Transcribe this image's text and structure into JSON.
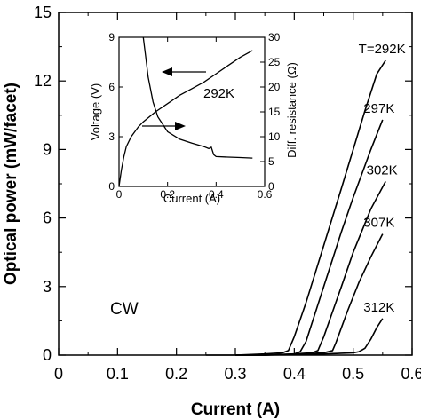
{
  "chart_data": [
    {
      "type": "line",
      "role": "main",
      "xlabel": "Current (A)",
      "ylabel": "Optical power (mW/facet)",
      "xlim": [
        0,
        0.6
      ],
      "ylim": [
        0,
        15
      ],
      "xticks": [
        "0",
        "0.1",
        "0.2",
        "0.3",
        "0.4",
        "0.5",
        "0.6"
      ],
      "yticks": [
        "0",
        "3",
        "6",
        "9",
        "12",
        "15"
      ],
      "annotation": "CW",
      "series": [
        {
          "name": "T=292K",
          "x": [
            0.25,
            0.3,
            0.35,
            0.38,
            0.39,
            0.4,
            0.42,
            0.45,
            0.48,
            0.5,
            0.52,
            0.54,
            0.555
          ],
          "y": [
            0.0,
            0.0,
            0.05,
            0.1,
            0.2,
            0.8,
            2.3,
            4.8,
            7.3,
            9.0,
            10.7,
            12.3,
            12.9
          ]
        },
        {
          "name": "297K",
          "x": [
            0.3,
            0.35,
            0.4,
            0.41,
            0.42,
            0.45,
            0.48,
            0.5,
            0.53,
            0.55
          ],
          "y": [
            0.0,
            0.0,
            0.05,
            0.15,
            0.6,
            3.0,
            5.4,
            6.9,
            9.0,
            10.3
          ]
        },
        {
          "name": "302K",
          "x": [
            0.3,
            0.35,
            0.4,
            0.43,
            0.44,
            0.45,
            0.48,
            0.5,
            0.53,
            0.555
          ],
          "y": [
            0.0,
            0.0,
            0.05,
            0.1,
            0.2,
            0.8,
            3.0,
            4.5,
            6.4,
            7.6
          ]
        },
        {
          "name": "307K",
          "x": [
            0.3,
            0.35,
            0.4,
            0.45,
            0.465,
            0.47,
            0.49,
            0.51,
            0.53,
            0.55
          ],
          "y": [
            0.0,
            0.0,
            0.03,
            0.1,
            0.2,
            0.5,
            1.9,
            3.2,
            4.3,
            5.3
          ]
        },
        {
          "name": "312K",
          "x": [
            0.3,
            0.35,
            0.4,
            0.45,
            0.5,
            0.51,
            0.52,
            0.53,
            0.54,
            0.55
          ],
          "y": [
            0.0,
            0.0,
            0.02,
            0.05,
            0.1,
            0.15,
            0.3,
            0.7,
            1.2,
            1.6
          ]
        }
      ],
      "labels": [
        "T=292K",
        "297K",
        "302K",
        "307K",
        "312K"
      ]
    },
    {
      "type": "line",
      "role": "inset",
      "xlabel": "Current (A)",
      "ylabel_left": "Voltage (V)",
      "ylabel_right": "Diff. resistance (Ω)",
      "xlim": [
        0,
        0.6
      ],
      "ylim_left": [
        0,
        9
      ],
      "ylim_right": [
        0,
        30
      ],
      "xticks": [
        "0",
        "0.2",
        "0.4",
        "0.6"
      ],
      "yticks_left": [
        "0",
        "3",
        "6",
        "9"
      ],
      "yticks_right": [
        "0",
        "5",
        "10",
        "15",
        "20",
        "25",
        "30"
      ],
      "annotation": "292K",
      "series": [
        {
          "name": "Voltage (V)",
          "axis": "left",
          "x": [
            0.0,
            0.01,
            0.02,
            0.03,
            0.05,
            0.08,
            0.1,
            0.15,
            0.2,
            0.25,
            0.3,
            0.35,
            0.4,
            0.45,
            0.5,
            0.55
          ],
          "y": [
            0.0,
            1.0,
            1.8,
            2.4,
            3.0,
            3.6,
            3.9,
            4.5,
            5.0,
            5.5,
            5.9,
            6.3,
            6.8,
            7.3,
            7.8,
            8.2
          ]
        },
        {
          "name": "Diff. resistance (Ω)",
          "axis": "right",
          "x": [
            0.1,
            0.11,
            0.12,
            0.14,
            0.16,
            0.2,
            0.25,
            0.3,
            0.35,
            0.37,
            0.38,
            0.39,
            0.4,
            0.45,
            0.5,
            0.55
          ],
          "y": [
            30.0,
            26.0,
            22.0,
            17.0,
            14.0,
            11.0,
            9.5,
            8.7,
            8.0,
            7.6,
            7.9,
            6.4,
            6.0,
            5.9,
            5.8,
            5.7
          ]
        }
      ]
    }
  ]
}
